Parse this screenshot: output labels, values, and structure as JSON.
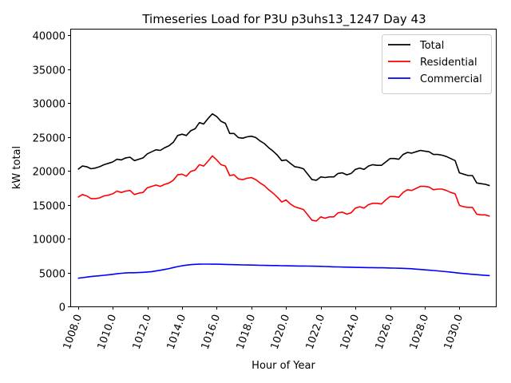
{
  "chart_data": {
    "type": "line",
    "title": "Timeseries Load for P3U p3uhs13_1247  Day 43",
    "xlabel": "Hour of Year",
    "ylabel": "kW total",
    "xlim": [
      1007.6,
      1032.1
    ],
    "ylim": [
      0,
      40833
    ],
    "x_ticks": [
      1008,
      1010,
      1012,
      1014,
      1016,
      1018,
      1020,
      1022,
      1024,
      1026,
      1028,
      1030
    ],
    "x_tick_labels": [
      "1008.0",
      "1010.0",
      "1012.0",
      "1014.0",
      "1016.0",
      "1018.0",
      "1020.0",
      "1022.0",
      "1024.0",
      "1026.0",
      "1028.0",
      "1030.0"
    ],
    "y_ticks": [
      0,
      5000,
      10000,
      15000,
      20000,
      25000,
      30000,
      35000,
      40000
    ],
    "y_tick_labels": [
      "0",
      "5000",
      "10000",
      "15000",
      "20000",
      "25000",
      "30000",
      "35000",
      "40000"
    ],
    "grid": false,
    "legend_position": "top-right",
    "x": [
      1008.0,
      1008.25,
      1008.5,
      1008.75,
      1009.0,
      1009.25,
      1009.5,
      1009.75,
      1010.0,
      1010.25,
      1010.5,
      1010.75,
      1011.0,
      1011.25,
      1011.5,
      1011.75,
      1012.0,
      1012.25,
      1012.5,
      1012.75,
      1013.0,
      1013.25,
      1013.5,
      1013.75,
      1014.0,
      1014.25,
      1014.5,
      1014.75,
      1015.0,
      1015.25,
      1015.5,
      1015.75,
      1016.0,
      1016.25,
      1016.5,
      1016.75,
      1017.0,
      1017.25,
      1017.5,
      1017.75,
      1018.0,
      1018.25,
      1018.5,
      1018.75,
      1019.0,
      1019.25,
      1019.5,
      1019.75,
      1020.0,
      1020.25,
      1020.5,
      1020.75,
      1021.0,
      1021.25,
      1021.5,
      1021.75,
      1022.0,
      1022.25,
      1022.5,
      1022.75,
      1023.0,
      1023.25,
      1023.5,
      1023.75,
      1024.0,
      1024.25,
      1024.5,
      1024.75,
      1025.0,
      1025.25,
      1025.5,
      1025.75,
      1026.0,
      1026.25,
      1026.5,
      1026.75,
      1027.0,
      1027.25,
      1027.5,
      1027.75,
      1028.0,
      1028.25,
      1028.5,
      1028.75,
      1029.0,
      1029.25,
      1029.5,
      1029.75,
      1030.0,
      1030.25,
      1030.5,
      1030.75,
      1031.0,
      1031.25,
      1031.5,
      1031.75
    ],
    "series": [
      {
        "name": "Total",
        "color": "#000000",
        "values": [
          20200,
          20700,
          20600,
          20300,
          20400,
          20600,
          20900,
          21100,
          21300,
          21700,
          21600,
          21900,
          22000,
          21500,
          21700,
          21900,
          22500,
          22800,
          23100,
          23000,
          23400,
          23700,
          24200,
          25200,
          25400,
          25200,
          25900,
          26200,
          27100,
          26900,
          27700,
          28400,
          28000,
          27300,
          27000,
          25500,
          25500,
          24900,
          24800,
          25000,
          25100,
          24900,
          24400,
          24000,
          23400,
          22900,
          22300,
          21500,
          21600,
          21100,
          20600,
          20500,
          20300,
          19500,
          18700,
          18600,
          19100,
          19000,
          19100,
          19100,
          19600,
          19700,
          19400,
          19600,
          20200,
          20400,
          20200,
          20700,
          20900,
          20800,
          20800,
          21300,
          21800,
          21800,
          21700,
          22400,
          22700,
          22600,
          22800,
          23000,
          22900,
          22800,
          22400,
          22400,
          22300,
          22100,
          21800,
          21500,
          19700,
          19500,
          19300,
          19300,
          18200,
          18100,
          18000,
          17800
        ]
      },
      {
        "name": "Residential",
        "color": "#ff0000",
        "values": [
          16100,
          16500,
          16300,
          15900,
          15900,
          16000,
          16300,
          16400,
          16600,
          17000,
          16800,
          17000,
          17100,
          16500,
          16700,
          16800,
          17500,
          17700,
          17900,
          17700,
          18000,
          18200,
          18600,
          19400,
          19500,
          19200,
          19900,
          20100,
          20900,
          20700,
          21400,
          22200,
          21600,
          20900,
          20700,
          19300,
          19400,
          18800,
          18700,
          18900,
          19000,
          18700,
          18200,
          17800,
          17200,
          16700,
          16100,
          15400,
          15700,
          15100,
          14700,
          14500,
          14300,
          13500,
          12700,
          12600,
          13200,
          13000,
          13200,
          13200,
          13800,
          13900,
          13600,
          13800,
          14500,
          14700,
          14500,
          15000,
          15200,
          15200,
          15100,
          15700,
          16200,
          16200,
          16100,
          16800,
          17200,
          17100,
          17400,
          17700,
          17700,
          17600,
          17200,
          17300,
          17300,
          17100,
          16800,
          16600,
          14900,
          14700,
          14600,
          14600,
          13600,
          13500,
          13500,
          13300
        ]
      },
      {
        "name": "Commercial",
        "color": "#0000ff",
        "values": [
          4150,
          4240,
          4320,
          4400,
          4460,
          4520,
          4590,
          4660,
          4730,
          4810,
          4880,
          4930,
          4960,
          4970,
          4990,
          5020,
          5070,
          5130,
          5220,
          5330,
          5450,
          5580,
          5730,
          5870,
          5990,
          6080,
          6150,
          6200,
          6230,
          6240,
          6240,
          6220,
          6230,
          6210,
          6190,
          6170,
          6150,
          6140,
          6120,
          6110,
          6100,
          6080,
          6060,
          6050,
          6040,
          6030,
          6020,
          6000,
          5990,
          5980,
          5970,
          5960,
          5950,
          5940,
          5930,
          5920,
          5910,
          5880,
          5860,
          5840,
          5820,
          5800,
          5790,
          5780,
          5760,
          5740,
          5730,
          5720,
          5720,
          5700,
          5690,
          5680,
          5660,
          5650,
          5630,
          5610,
          5580,
          5550,
          5500,
          5450,
          5390,
          5340,
          5290,
          5240,
          5180,
          5120,
          5050,
          4980,
          4910,
          4850,
          4790,
          4730,
          4680,
          4630,
          4580,
          4540
        ]
      }
    ]
  }
}
